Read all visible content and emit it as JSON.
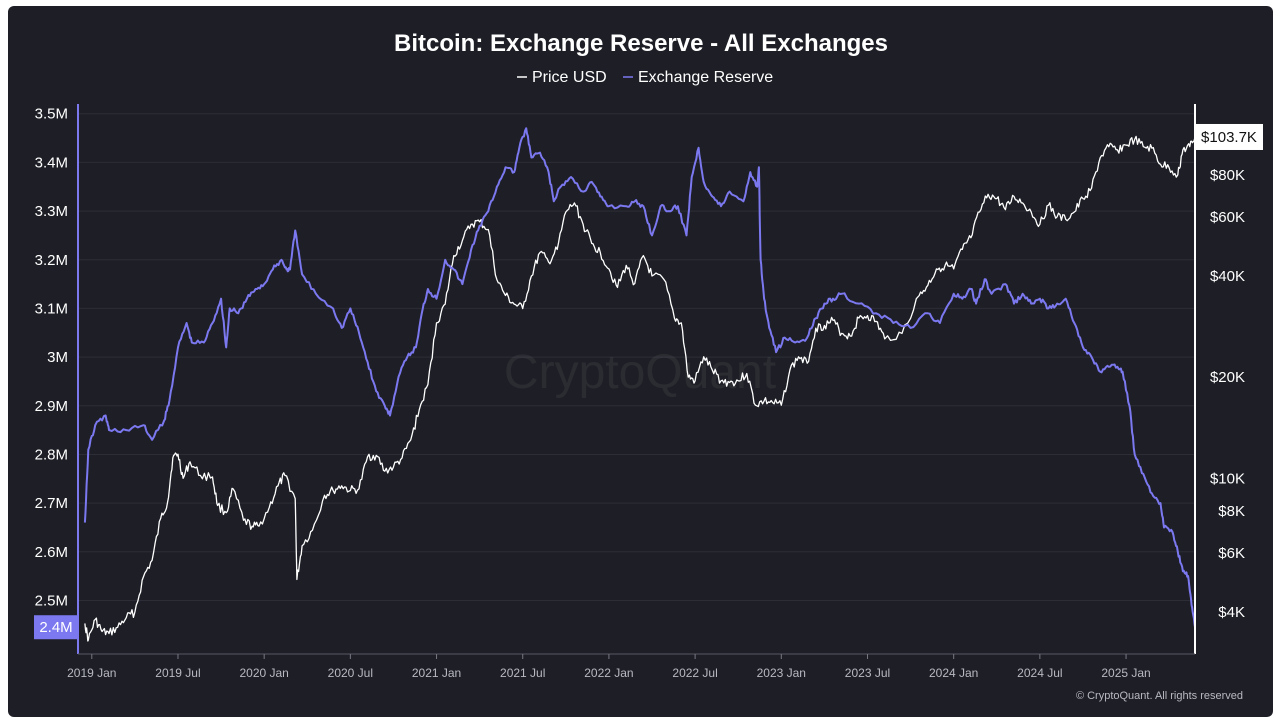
{
  "chart_data": {
    "type": "line",
    "title": "Bitcoin: Exchange Reserve - All Exchanges",
    "legend": [
      {
        "name": "Price USD",
        "color": "#ffffff"
      },
      {
        "name": "Exchange Reserve",
        "color": "#7b78f0"
      }
    ],
    "watermark": "CryptoQuant",
    "copyright": "© CryptoQuant. All rights reserved",
    "x_range": [
      2018.92,
      2025.4
    ],
    "x_ticks": [
      {
        "label": "2019 Jan",
        "t": 2019.0
      },
      {
        "label": "2019 Jul",
        "t": 2019.5
      },
      {
        "label": "2020 Jan",
        "t": 2020.0
      },
      {
        "label": "2020 Jul",
        "t": 2020.5
      },
      {
        "label": "2021 Jan",
        "t": 2021.0
      },
      {
        "label": "2021 Jul",
        "t": 2021.5
      },
      {
        "label": "2022 Jan",
        "t": 2022.0
      },
      {
        "label": "2022 Jul",
        "t": 2022.5
      },
      {
        "label": "2023 Jan",
        "t": 2023.0
      },
      {
        "label": "2023 Jul",
        "t": 2023.5
      },
      {
        "label": "2024 Jan",
        "t": 2024.0
      },
      {
        "label": "2024 Jul",
        "t": 2024.5
      },
      {
        "label": "2025 Jan",
        "t": 2025.0
      }
    ],
    "left_axis": {
      "ylim": [
        2.39,
        3.52
      ],
      "ticks": [
        {
          "label": "3.5M",
          "v": 3.5
        },
        {
          "label": "3.4M",
          "v": 3.4
        },
        {
          "label": "3.3M",
          "v": 3.3
        },
        {
          "label": "3.2M",
          "v": 3.2
        },
        {
          "label": "3.1M",
          "v": 3.1
        },
        {
          "label": "3M",
          "v": 3.0
        },
        {
          "label": "2.9M",
          "v": 2.9
        },
        {
          "label": "2.8M",
          "v": 2.8
        },
        {
          "label": "2.7M",
          "v": 2.7
        },
        {
          "label": "2.6M",
          "v": 2.6
        },
        {
          "label": "2.5M",
          "v": 2.5
        }
      ],
      "current_label": "2.4M",
      "current_value": 2.445
    },
    "right_axis": {
      "scale": "log",
      "ylim": [
        3000,
        130000
      ],
      "ticks": [
        {
          "label": "$80K",
          "v": 80000
        },
        {
          "label": "$60K",
          "v": 60000
        },
        {
          "label": "$40K",
          "v": 40000
        },
        {
          "label": "$20K",
          "v": 20000
        },
        {
          "label": "$10K",
          "v": 10000
        },
        {
          "label": "$8K",
          "v": 8000
        },
        {
          "label": "$6K",
          "v": 6000
        },
        {
          "label": "$4K",
          "v": 4000
        }
      ],
      "current_label": "$103.7K",
      "current_value": 103700
    },
    "series": [
      {
        "name": "Exchange Reserve",
        "axis": "left",
        "unit": "M BTC",
        "points": [
          [
            2018.96,
            2.66
          ],
          [
            2018.98,
            2.81
          ],
          [
            2019.02,
            2.86
          ],
          [
            2019.08,
            2.88
          ],
          [
            2019.1,
            2.85
          ],
          [
            2019.2,
            2.85
          ],
          [
            2019.3,
            2.86
          ],
          [
            2019.35,
            2.83
          ],
          [
            2019.42,
            2.87
          ],
          [
            2019.45,
            2.91
          ],
          [
            2019.5,
            3.02
          ],
          [
            2019.55,
            3.07
          ],
          [
            2019.58,
            3.03
          ],
          [
            2019.65,
            3.03
          ],
          [
            2019.7,
            3.07
          ],
          [
            2019.75,
            3.12
          ],
          [
            2019.78,
            3.02
          ],
          [
            2019.8,
            3.1
          ],
          [
            2019.85,
            3.09
          ],
          [
            2019.9,
            3.12
          ],
          [
            2019.95,
            3.14
          ],
          [
            2020.0,
            3.15
          ],
          [
            2020.05,
            3.18
          ],
          [
            2020.1,
            3.2
          ],
          [
            2020.13,
            3.18
          ],
          [
            2020.15,
            3.18
          ],
          [
            2020.18,
            3.26
          ],
          [
            2020.22,
            3.17
          ],
          [
            2020.3,
            3.13
          ],
          [
            2020.4,
            3.1
          ],
          [
            2020.45,
            3.06
          ],
          [
            2020.5,
            3.1
          ],
          [
            2020.55,
            3.05
          ],
          [
            2020.6,
            2.99
          ],
          [
            2020.65,
            2.93
          ],
          [
            2020.7,
            2.9
          ],
          [
            2020.73,
            2.88
          ],
          [
            2020.78,
            2.96
          ],
          [
            2020.83,
            3.0
          ],
          [
            2020.88,
            3.02
          ],
          [
            2020.92,
            3.1
          ],
          [
            2020.95,
            3.14
          ],
          [
            2021.0,
            3.12
          ],
          [
            2021.05,
            3.2
          ],
          [
            2021.1,
            3.18
          ],
          [
            2021.15,
            3.15
          ],
          [
            2021.2,
            3.22
          ],
          [
            2021.25,
            3.27
          ],
          [
            2021.3,
            3.3
          ],
          [
            2021.35,
            3.35
          ],
          [
            2021.4,
            3.39
          ],
          [
            2021.45,
            3.38
          ],
          [
            2021.48,
            3.43
          ],
          [
            2021.52,
            3.47
          ],
          [
            2021.55,
            3.41
          ],
          [
            2021.6,
            3.42
          ],
          [
            2021.65,
            3.38
          ],
          [
            2021.68,
            3.32
          ],
          [
            2021.72,
            3.35
          ],
          [
            2021.78,
            3.37
          ],
          [
            2021.85,
            3.34
          ],
          [
            2021.9,
            3.36
          ],
          [
            2021.95,
            3.33
          ],
          [
            2022.0,
            3.31
          ],
          [
            2022.1,
            3.31
          ],
          [
            2022.15,
            3.32
          ],
          [
            2022.2,
            3.31
          ],
          [
            2022.25,
            3.25
          ],
          [
            2022.3,
            3.31
          ],
          [
            2022.35,
            3.3
          ],
          [
            2022.4,
            3.31
          ],
          [
            2022.45,
            3.25
          ],
          [
            2022.48,
            3.37
          ],
          [
            2022.52,
            3.43
          ],
          [
            2022.55,
            3.36
          ],
          [
            2022.6,
            3.33
          ],
          [
            2022.65,
            3.31
          ],
          [
            2022.7,
            3.34
          ],
          [
            2022.78,
            3.32
          ],
          [
            2022.82,
            3.38
          ],
          [
            2022.86,
            3.35
          ],
          [
            2022.87,
            3.39
          ],
          [
            2022.88,
            3.2
          ],
          [
            2022.9,
            3.12
          ],
          [
            2022.93,
            3.06
          ],
          [
            2022.97,
            3.01
          ],
          [
            2023.02,
            3.04
          ],
          [
            2023.08,
            3.03
          ],
          [
            2023.15,
            3.04
          ],
          [
            2023.2,
            3.08
          ],
          [
            2023.25,
            3.11
          ],
          [
            2023.3,
            3.12
          ],
          [
            2023.35,
            3.13
          ],
          [
            2023.45,
            3.11
          ],
          [
            2023.55,
            3.09
          ],
          [
            2023.65,
            3.07
          ],
          [
            2023.75,
            3.06
          ],
          [
            2023.85,
            3.09
          ],
          [
            2023.92,
            3.07
          ],
          [
            2024.0,
            3.13
          ],
          [
            2024.05,
            3.12
          ],
          [
            2024.1,
            3.14
          ],
          [
            2024.13,
            3.11
          ],
          [
            2024.18,
            3.16
          ],
          [
            2024.22,
            3.13
          ],
          [
            2024.3,
            3.15
          ],
          [
            2024.35,
            3.11
          ],
          [
            2024.4,
            3.13
          ],
          [
            2024.45,
            3.11
          ],
          [
            2024.5,
            3.12
          ],
          [
            2024.55,
            3.1
          ],
          [
            2024.6,
            3.11
          ],
          [
            2024.65,
            3.12
          ],
          [
            2024.7,
            3.07
          ],
          [
            2024.75,
            3.02
          ],
          [
            2024.8,
            3.0
          ],
          [
            2024.85,
            2.97
          ],
          [
            2024.9,
            2.98
          ],
          [
            2024.95,
            2.98
          ],
          [
            2024.98,
            2.97
          ],
          [
            2025.02,
            2.9
          ],
          [
            2025.05,
            2.8
          ],
          [
            2025.1,
            2.76
          ],
          [
            2025.15,
            2.72
          ],
          [
            2025.2,
            2.7
          ],
          [
            2025.22,
            2.65
          ],
          [
            2025.27,
            2.64
          ],
          [
            2025.3,
            2.6
          ],
          [
            2025.33,
            2.56
          ],
          [
            2025.36,
            2.55
          ],
          [
            2025.38,
            2.49
          ],
          [
            2025.4,
            2.445
          ]
        ]
      },
      {
        "name": "Price USD",
        "axis": "right",
        "unit": "USD",
        "points": [
          [
            2018.96,
            3700
          ],
          [
            2018.98,
            3300
          ],
          [
            2019.02,
            3800
          ],
          [
            2019.06,
            3500
          ],
          [
            2019.1,
            3450
          ],
          [
            2019.15,
            3600
          ],
          [
            2019.2,
            3850
          ],
          [
            2019.25,
            4000
          ],
          [
            2019.3,
            5100
          ],
          [
            2019.35,
            5700
          ],
          [
            2019.4,
            7600
          ],
          [
            2019.44,
            8500
          ],
          [
            2019.47,
            11500
          ],
          [
            2019.5,
            11800
          ],
          [
            2019.53,
            10000
          ],
          [
            2019.57,
            11200
          ],
          [
            2019.63,
            10200
          ],
          [
            2019.7,
            10100
          ],
          [
            2019.73,
            8300
          ],
          [
            2019.78,
            7900
          ],
          [
            2019.82,
            9300
          ],
          [
            2019.88,
            7500
          ],
          [
            2019.93,
            7200
          ],
          [
            2019.97,
            7200
          ],
          [
            2020.03,
            8200
          ],
          [
            2020.08,
            9500
          ],
          [
            2020.12,
            10200
          ],
          [
            2020.18,
            8700
          ],
          [
            2020.19,
            5000
          ],
          [
            2020.22,
            6300
          ],
          [
            2020.28,
            7000
          ],
          [
            2020.35,
            8900
          ],
          [
            2020.4,
            9200
          ],
          [
            2020.45,
            9500
          ],
          [
            2020.5,
            9200
          ],
          [
            2020.55,
            9300
          ],
          [
            2020.6,
            11600
          ],
          [
            2020.65,
            11700
          ],
          [
            2020.7,
            10500
          ],
          [
            2020.75,
            10800
          ],
          [
            2020.8,
            11500
          ],
          [
            2020.85,
            13000
          ],
          [
            2020.9,
            16000
          ],
          [
            2020.95,
            19000
          ],
          [
            2021.0,
            29000
          ],
          [
            2021.05,
            33000
          ],
          [
            2021.1,
            46000
          ],
          [
            2021.15,
            51000
          ],
          [
            2021.2,
            57000
          ],
          [
            2021.25,
            58000
          ],
          [
            2021.3,
            55000
          ],
          [
            2021.35,
            39000
          ],
          [
            2021.4,
            35000
          ],
          [
            2021.45,
            33000
          ],
          [
            2021.5,
            32000
          ],
          [
            2021.55,
            40000
          ],
          [
            2021.6,
            47000
          ],
          [
            2021.65,
            44000
          ],
          [
            2021.7,
            48000
          ],
          [
            2021.75,
            62000
          ],
          [
            2021.8,
            66000
          ],
          [
            2021.85,
            57000
          ],
          [
            2021.9,
            50000
          ],
          [
            2021.95,
            47000
          ],
          [
            2022.0,
            42000
          ],
          [
            2022.05,
            37000
          ],
          [
            2022.1,
            43000
          ],
          [
            2022.15,
            38000
          ],
          [
            2022.2,
            46000
          ],
          [
            2022.25,
            40000
          ],
          [
            2022.32,
            39000
          ],
          [
            2022.38,
            30000
          ],
          [
            2022.42,
            29000
          ],
          [
            2022.46,
            20000
          ],
          [
            2022.5,
            19500
          ],
          [
            2022.55,
            23000
          ],
          [
            2022.6,
            21000
          ],
          [
            2022.65,
            19500
          ],
          [
            2022.7,
            19300
          ],
          [
            2022.75,
            19500
          ],
          [
            2022.8,
            20500
          ],
          [
            2022.85,
            16500
          ],
          [
            2022.9,
            17000
          ],
          [
            2022.95,
            16800
          ],
          [
            2023.0,
            16500
          ],
          [
            2023.05,
            21000
          ],
          [
            2023.1,
            23000
          ],
          [
            2023.15,
            22000
          ],
          [
            2023.2,
            28000
          ],
          [
            2023.25,
            28500
          ],
          [
            2023.3,
            29500
          ],
          [
            2023.35,
            27000
          ],
          [
            2023.4,
            26500
          ],
          [
            2023.45,
            30000
          ],
          [
            2023.5,
            30500
          ],
          [
            2023.55,
            29300
          ],
          [
            2023.6,
            26000
          ],
          [
            2023.7,
            27000
          ],
          [
            2023.8,
            35000
          ],
          [
            2023.85,
            37500
          ],
          [
            2023.9,
            42000
          ],
          [
            2023.95,
            43000
          ],
          [
            2024.0,
            42000
          ],
          [
            2024.05,
            48000
          ],
          [
            2024.1,
            52000
          ],
          [
            2024.15,
            62000
          ],
          [
            2024.2,
            70000
          ],
          [
            2024.25,
            68000
          ],
          [
            2024.3,
            63000
          ],
          [
            2024.35,
            69000
          ],
          [
            2024.4,
            66000
          ],
          [
            2024.45,
            62000
          ],
          [
            2024.5,
            57000
          ],
          [
            2024.55,
            65000
          ],
          [
            2024.6,
            60000
          ],
          [
            2024.65,
            59000
          ],
          [
            2024.7,
            62000
          ],
          [
            2024.75,
            68000
          ],
          [
            2024.8,
            73000
          ],
          [
            2024.85,
            90000
          ],
          [
            2024.9,
            97000
          ],
          [
            2024.95,
            95000
          ],
          [
            2025.0,
            98000
          ],
          [
            2025.05,
            102000
          ],
          [
            2025.1,
            97000
          ],
          [
            2025.15,
            96000
          ],
          [
            2025.2,
            86000
          ],
          [
            2025.25,
            84000
          ],
          [
            2025.3,
            80000
          ],
          [
            2025.33,
            95000
          ],
          [
            2025.37,
            97000
          ],
          [
            2025.4,
            103700
          ]
        ]
      }
    ]
  }
}
